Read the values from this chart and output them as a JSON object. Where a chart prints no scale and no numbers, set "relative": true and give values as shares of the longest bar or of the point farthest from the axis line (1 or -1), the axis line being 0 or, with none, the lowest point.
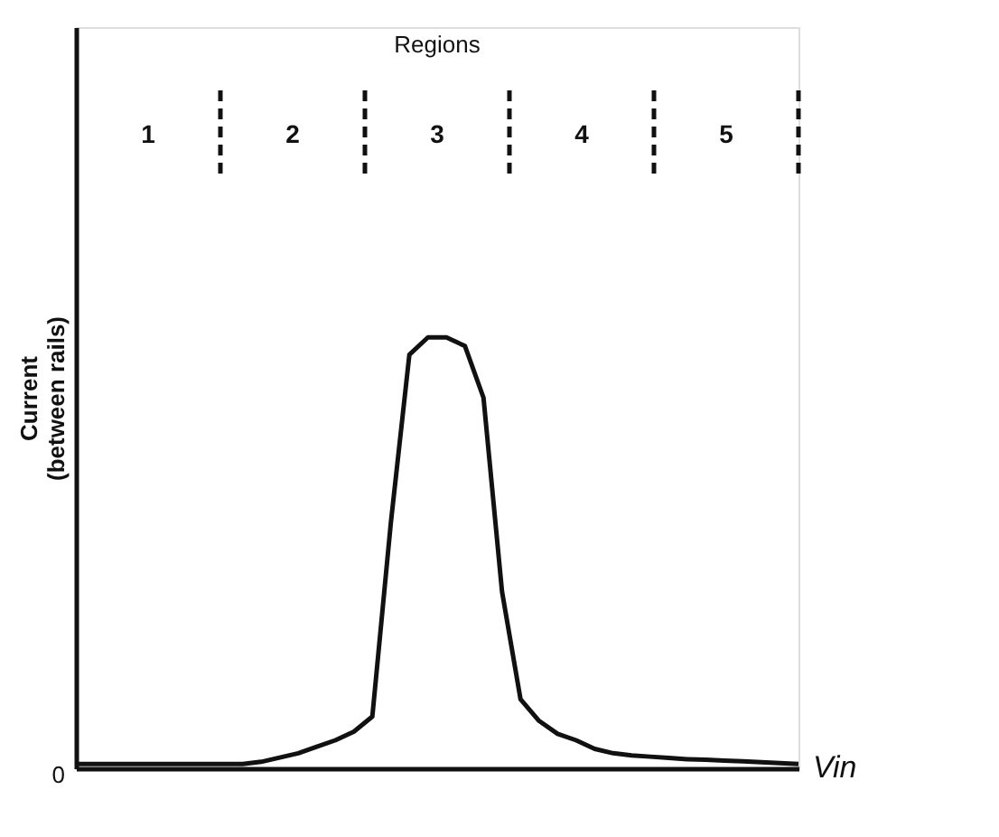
{
  "chart_data": {
    "type": "line",
    "relative": true,
    "tick_labels": false,
    "grid": false,
    "marker": "none",
    "line_style": "solid",
    "xlabel": "Vin",
    "ylabel": "Current (between rails)",
    "categories": [
      null,
      null,
      null,
      null,
      null,
      null,
      null,
      null,
      null,
      null,
      null,
      null,
      null,
      null,
      null,
      null,
      null,
      null,
      null,
      null,
      null,
      null,
      null,
      null,
      null,
      null,
      null,
      null,
      null,
      null,
      null,
      null,
      null,
      null,
      null,
      null,
      null,
      null,
      null,
      null
    ],
    "series": [
      {
        "color": "#111111",
        "values": [
          0.01,
          0.01,
          0.01,
          0.01,
          0.01,
          0.01,
          0.01,
          0.01,
          0.01,
          0.01,
          0.015,
          0.025,
          0.035,
          0.05,
          0.065,
          0.085,
          0.12,
          0.57,
          0.96,
          1.0,
          1.0,
          0.98,
          0.86,
          0.41,
          0.16,
          0.11,
          0.08,
          0.065,
          0.045,
          0.035,
          0.03,
          0.027,
          0.024,
          0.021,
          0.02,
          0.018,
          0.016,
          0.014,
          0.012,
          0.01
        ]
      }
    ],
    "annotations": [
      "Regions",
      "1",
      "2",
      "3",
      "4",
      "5",
      "0"
    ]
  }
}
